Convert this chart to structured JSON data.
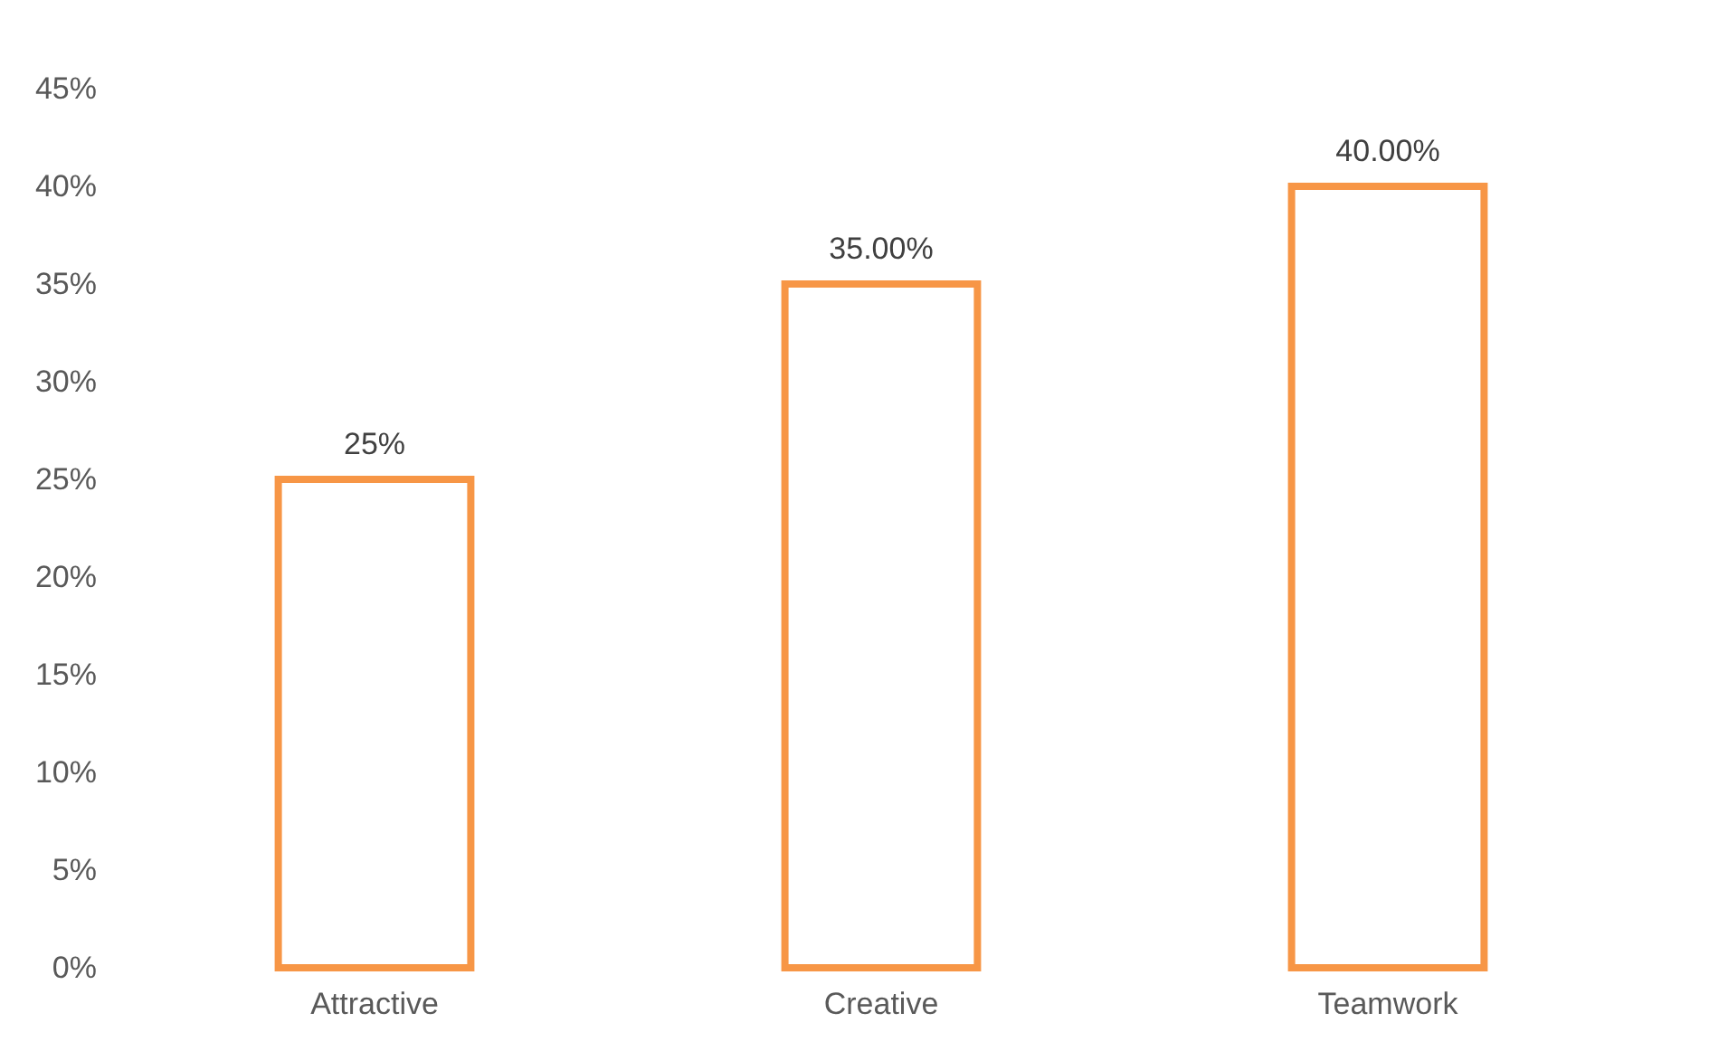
{
  "chart_data": {
    "type": "bar",
    "categories": [
      "Attractive",
      "Creative",
      "Teamwork"
    ],
    "values": [
      25,
      35,
      40
    ],
    "color": "#f79646",
    "value_labels": [
      "25%",
      "35.00%",
      "40.00%"
    ],
    "ylim": [
      0,
      45
    ],
    "yticks": [
      {
        "value": 0,
        "label": "0%"
      },
      {
        "value": 5,
        "label": "5%"
      },
      {
        "value": 10,
        "label": "10%"
      },
      {
        "value": 15,
        "label": "15%"
      },
      {
        "value": 20,
        "label": "20%"
      },
      {
        "value": 25,
        "label": "25%"
      },
      {
        "value": 30,
        "label": "30%"
      },
      {
        "value": 35,
        "label": "35%"
      },
      {
        "value": 40,
        "label": "40%"
      },
      {
        "value": 45,
        "label": "45%"
      }
    ],
    "grid": false
  }
}
